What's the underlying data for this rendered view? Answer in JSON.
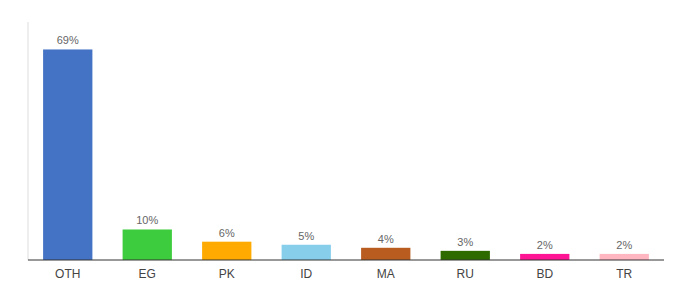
{
  "chart_data": {
    "type": "bar",
    "categories": [
      "OTH",
      "EG",
      "PK",
      "ID",
      "MA",
      "RU",
      "BD",
      "TR"
    ],
    "values": [
      69,
      10,
      6,
      5,
      4,
      3,
      2,
      2
    ],
    "value_labels": [
      "69%",
      "10%",
      "6%",
      "5%",
      "4%",
      "3%",
      "2%",
      "2%"
    ],
    "colors": [
      "#4472c4",
      "#3dcc3d",
      "#ffaa00",
      "#87ceeb",
      "#b85c20",
      "#2d6a00",
      "#ff1493",
      "#ffb6c1"
    ],
    "data_labels": true,
    "ylim": [
      0,
      78
    ],
    "tick_labels": "x",
    "grid": false
  }
}
